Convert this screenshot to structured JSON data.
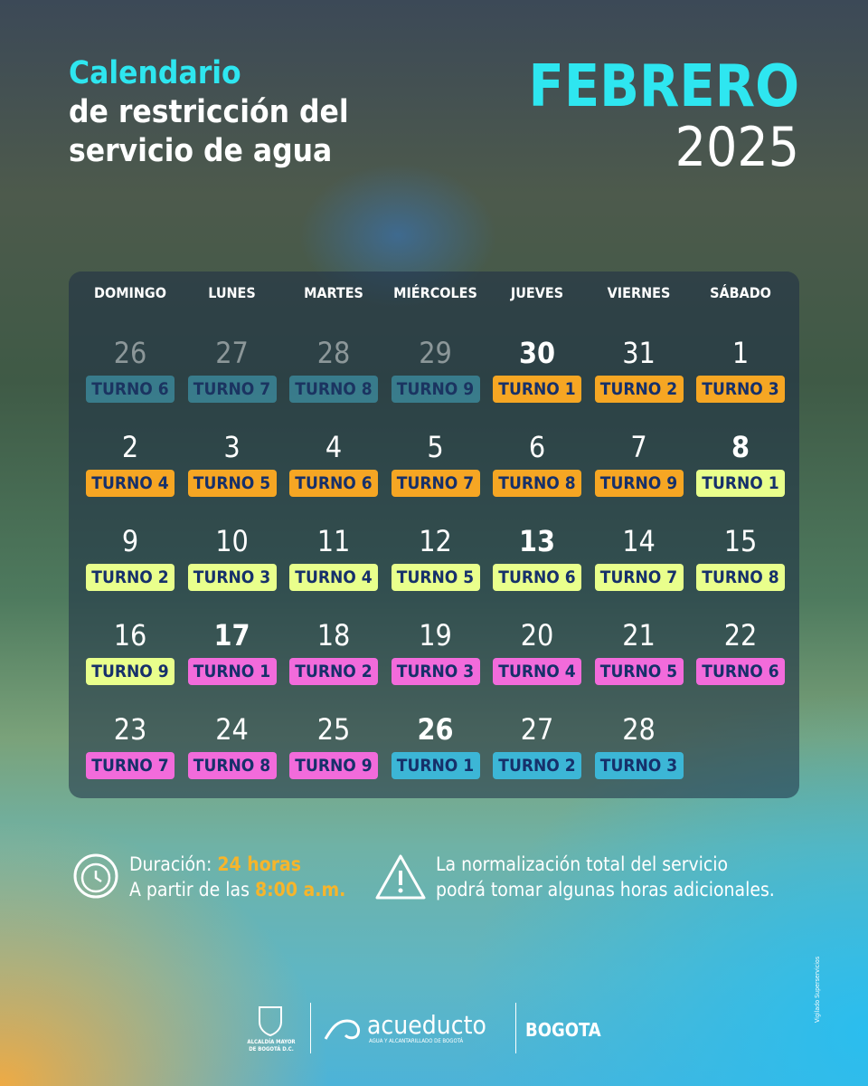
{
  "header": {
    "title": [
      "Calendario",
      "de restricción del",
      "servicio de agua"
    ],
    "month": "FEBRERO",
    "year": "2025"
  },
  "calendar": {
    "weekdays": [
      "DOMINGO",
      "LUNES",
      "MARTES",
      "MIÉRCOLES",
      "JUEVES",
      "VIERNES",
      "SÁBADO"
    ],
    "weeks": [
      [
        {
          "day": 26,
          "shift": "TURNO 6",
          "color": "#3d8fa3",
          "muted": true
        },
        {
          "day": 27,
          "shift": "TURNO 7",
          "color": "#3d8fa3",
          "muted": true
        },
        {
          "day": 28,
          "shift": "TURNO 8",
          "color": "#3d8fa3",
          "muted": true
        },
        {
          "day": 29,
          "shift": "TURNO 9",
          "color": "#3d8fa3",
          "muted": true
        },
        {
          "day": 30,
          "shift": "TURNO 1",
          "color": "#f6a623",
          "bold": true
        },
        {
          "day": 31,
          "shift": "TURNO 2",
          "color": "#f6a623"
        },
        {
          "day": 1,
          "shift": "TURNO 3",
          "color": "#f6a623"
        }
      ],
      [
        {
          "day": 2,
          "shift": "TURNO 4",
          "color": "#f6a623"
        },
        {
          "day": 3,
          "shift": "TURNO 5",
          "color": "#f6a623"
        },
        {
          "day": 4,
          "shift": "TURNO 6",
          "color": "#f6a623"
        },
        {
          "day": 5,
          "shift": "TURNO 7",
          "color": "#f6a623"
        },
        {
          "day": 6,
          "shift": "TURNO 8",
          "color": "#f6a623"
        },
        {
          "day": 7,
          "shift": "TURNO 9",
          "color": "#f6a623"
        },
        {
          "day": 8,
          "shift": "TURNO 1",
          "color": "#e9ff8c",
          "bold": true
        }
      ],
      [
        {
          "day": 9,
          "shift": "TURNO 2",
          "color": "#e9ff8c"
        },
        {
          "day": 10,
          "shift": "TURNO 3",
          "color": "#e9ff8c"
        },
        {
          "day": 11,
          "shift": "TURNO 4",
          "color": "#e9ff8c"
        },
        {
          "day": 12,
          "shift": "TURNO 5",
          "color": "#e9ff8c"
        },
        {
          "day": 13,
          "shift": "TURNO 6",
          "color": "#e9ff8c",
          "bold": true
        },
        {
          "day": 14,
          "shift": "TURNO 7",
          "color": "#e9ff8c"
        },
        {
          "day": 15,
          "shift": "TURNO 8",
          "color": "#e9ff8c"
        }
      ],
      [
        {
          "day": 16,
          "shift": "TURNO 9",
          "color": "#e9ff8c"
        },
        {
          "day": 17,
          "shift": "TURNO 1",
          "color": "#f26bdb",
          "bold": true
        },
        {
          "day": 18,
          "shift": "TURNO 2",
          "color": "#f26bdb"
        },
        {
          "day": 19,
          "shift": "TURNO 3",
          "color": "#f26bdb"
        },
        {
          "day": 20,
          "shift": "TURNO 4",
          "color": "#f26bdb"
        },
        {
          "day": 21,
          "shift": "TURNO 5",
          "color": "#f26bdb"
        },
        {
          "day": 22,
          "shift": "TURNO 6",
          "color": "#f26bdb"
        }
      ],
      [
        {
          "day": 23,
          "shift": "TURNO 7",
          "color": "#f26bdb"
        },
        {
          "day": 24,
          "shift": "TURNO 8",
          "color": "#f26bdb"
        },
        {
          "day": 25,
          "shift": "TURNO 9",
          "color": "#f26bdb"
        },
        {
          "day": 26,
          "shift": "TURNO 1",
          "color": "#3cb6d6",
          "bold": true
        },
        {
          "day": 27,
          "shift": "TURNO 2",
          "color": "#3cb6d6"
        },
        {
          "day": 28,
          "shift": "TURNO 3",
          "color": "#3cb6d6"
        }
      ]
    ]
  },
  "info": {
    "duration_label": "Duración:",
    "duration": "24 horas",
    "start_label": "A partir de las",
    "start": "8:00 a.m.",
    "note": [
      "La normalización total del servicio",
      "podrá tomar algunas horas adicionales."
    ]
  },
  "footer": {
    "alcaldia": [
      "ALCALDÍA MAYOR",
      "DE BOGOTÁ D.C."
    ],
    "acueducto": "acueducto",
    "acueducto_sub": "AGUA Y ALCANTARILLADO DE BOGOTÁ",
    "bogota": "BOGOTA",
    "vigilado": "Vigilado Superservicios"
  }
}
